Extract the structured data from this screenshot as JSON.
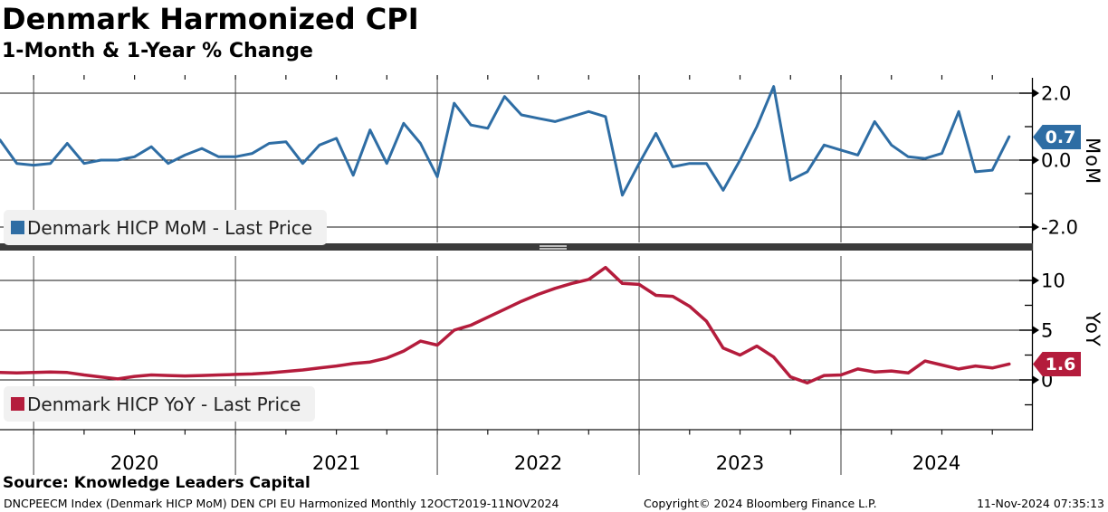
{
  "source_line": "Source: Knowledge Leaders Capital",
  "footer": {
    "left": "DNCPEECM Index (Denmark HICP MoM) DEN CPI EU Harmonized  Monthly 12OCT2019-11NOV2024",
    "center": "Copyright© 2024 Bloomberg Finance L.P.",
    "right": "11-Nov-2024 07:35:13"
  },
  "chart_data": {
    "type": "line",
    "title": "Denmark Harmonized CPI",
    "subtitle": "1-Month & 1-Year % Change",
    "frequency": "monthly",
    "x_start": "2019-11",
    "x_end": "2024-11",
    "x_tick_labels": [
      "2020",
      "2021",
      "2022",
      "2023",
      "2024"
    ],
    "grid": true,
    "panels": [
      {
        "name": "mom",
        "axis_label": "MoM",
        "legend": "Denmark HICP MoM - Last Price",
        "color": "#2e6da4",
        "last_price": "0.7",
        "yticks": [
          "2.0",
          "0.0",
          "-2.0"
        ],
        "ylim": [
          -2.45,
          2.4
        ],
        "values": [
          0.6,
          -0.1,
          -0.15,
          -0.1,
          0.5,
          -0.1,
          0.0,
          0.0,
          0.1,
          0.4,
          -0.1,
          0.15,
          0.35,
          0.1,
          0.1,
          0.2,
          0.5,
          0.55,
          -0.1,
          0.45,
          0.65,
          -0.45,
          0.9,
          -0.1,
          1.1,
          0.5,
          -0.5,
          1.7,
          1.05,
          0.95,
          1.9,
          1.35,
          1.25,
          1.15,
          1.3,
          1.45,
          1.3,
          -1.05,
          -0.1,
          0.8,
          -0.2,
          -0.1,
          -0.1,
          -0.9,
          0.0,
          1.0,
          2.2,
          -0.6,
          -0.35,
          0.45,
          0.3,
          0.15,
          1.15,
          0.45,
          0.1,
          0.05,
          0.2,
          1.45,
          -0.35,
          -0.3,
          0.7
        ]
      },
      {
        "name": "yoy",
        "axis_label": "YoY",
        "legend": "Denmark HICP YoY - Last Price",
        "color": "#b41c3c",
        "last_price": "1.6",
        "yticks": [
          "10",
          "5",
          "0"
        ],
        "ylim": [
          -5.0,
          12.45
        ],
        "values": [
          0.75,
          0.7,
          0.75,
          0.8,
          0.75,
          0.5,
          0.3,
          0.1,
          0.35,
          0.5,
          0.45,
          0.4,
          0.45,
          0.5,
          0.55,
          0.6,
          0.7,
          0.85,
          1.0,
          1.2,
          1.4,
          1.65,
          1.8,
          2.2,
          2.9,
          3.9,
          3.5,
          5.0,
          5.5,
          6.3,
          7.1,
          7.9,
          8.6,
          9.2,
          9.7,
          10.1,
          11.3,
          9.7,
          9.6,
          8.5,
          8.4,
          7.4,
          5.9,
          3.2,
          2.5,
          3.4,
          2.3,
          0.3,
          -0.3,
          0.45,
          0.5,
          1.1,
          0.8,
          0.9,
          0.7,
          1.9,
          1.5,
          1.1,
          1.4,
          1.2,
          1.6
        ]
      }
    ]
  }
}
